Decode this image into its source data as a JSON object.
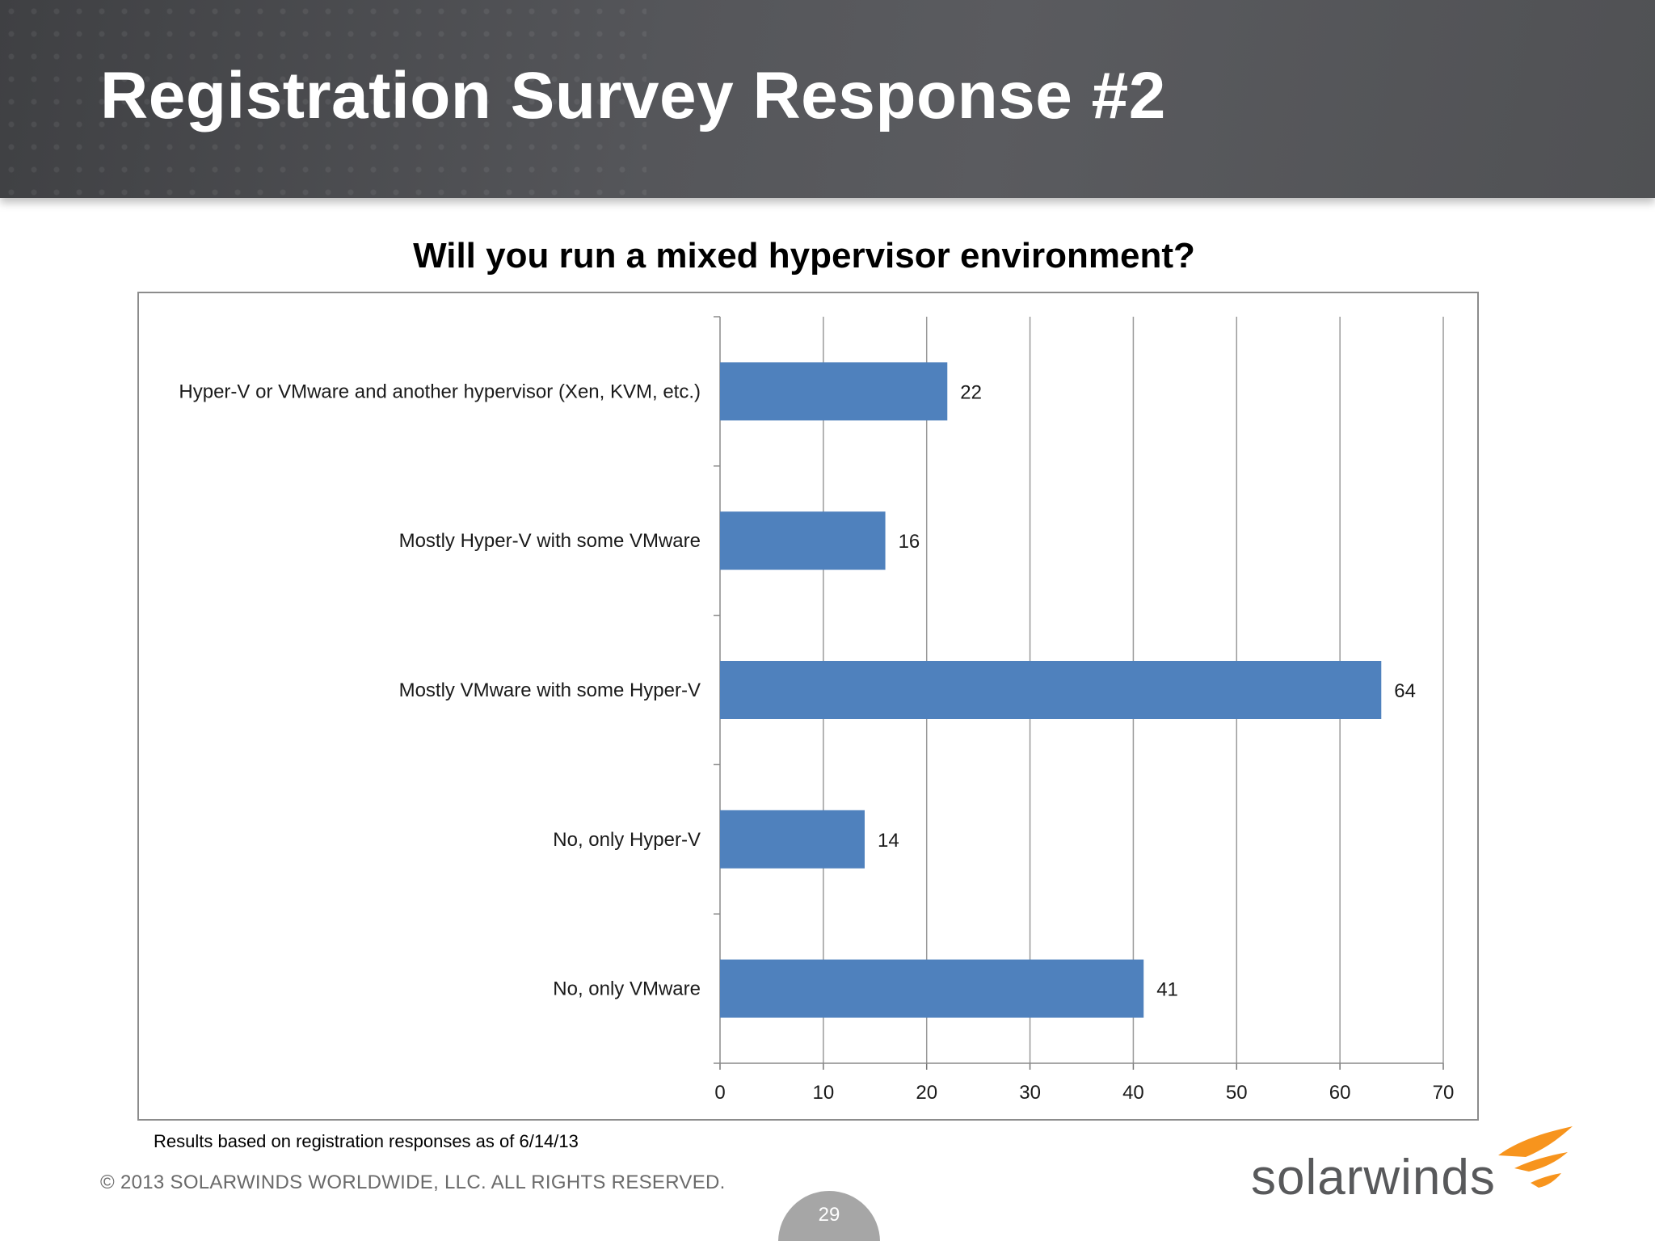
{
  "slide": {
    "title": "Registration Survey Response #2",
    "footnote": "Results based on registration responses as of 6/14/13",
    "copyright": "© 2013 SOLARWINDS WORLDWIDE, LLC.  ALL RIGHTS RESERVED.",
    "logo_text": "solarwinds",
    "page_number": "29"
  },
  "colors": {
    "bar": "#4f81bd",
    "grid": "#9a9a9a",
    "logo_orange": "#f7941d"
  },
  "chart_data": {
    "type": "bar",
    "orientation": "horizontal",
    "title": "Will you run a mixed hypervisor environment?",
    "xlabel": "",
    "ylabel": "",
    "categories": [
      "Hyper-V or VMware and another hypervisor (Xen, KVM, etc.)",
      "Mostly Hyper-V with some VMware",
      "Mostly VMware with some Hyper-V",
      "No, only Hyper-V",
      "No, only VMware"
    ],
    "values": [
      22,
      16,
      64,
      14,
      41
    ],
    "xlim": [
      0,
      70
    ],
    "xticks": [
      "0",
      "10",
      "20",
      "30",
      "40",
      "50",
      "60",
      "70"
    ],
    "grid": "vertical",
    "legend": "none",
    "data_labels": true
  }
}
